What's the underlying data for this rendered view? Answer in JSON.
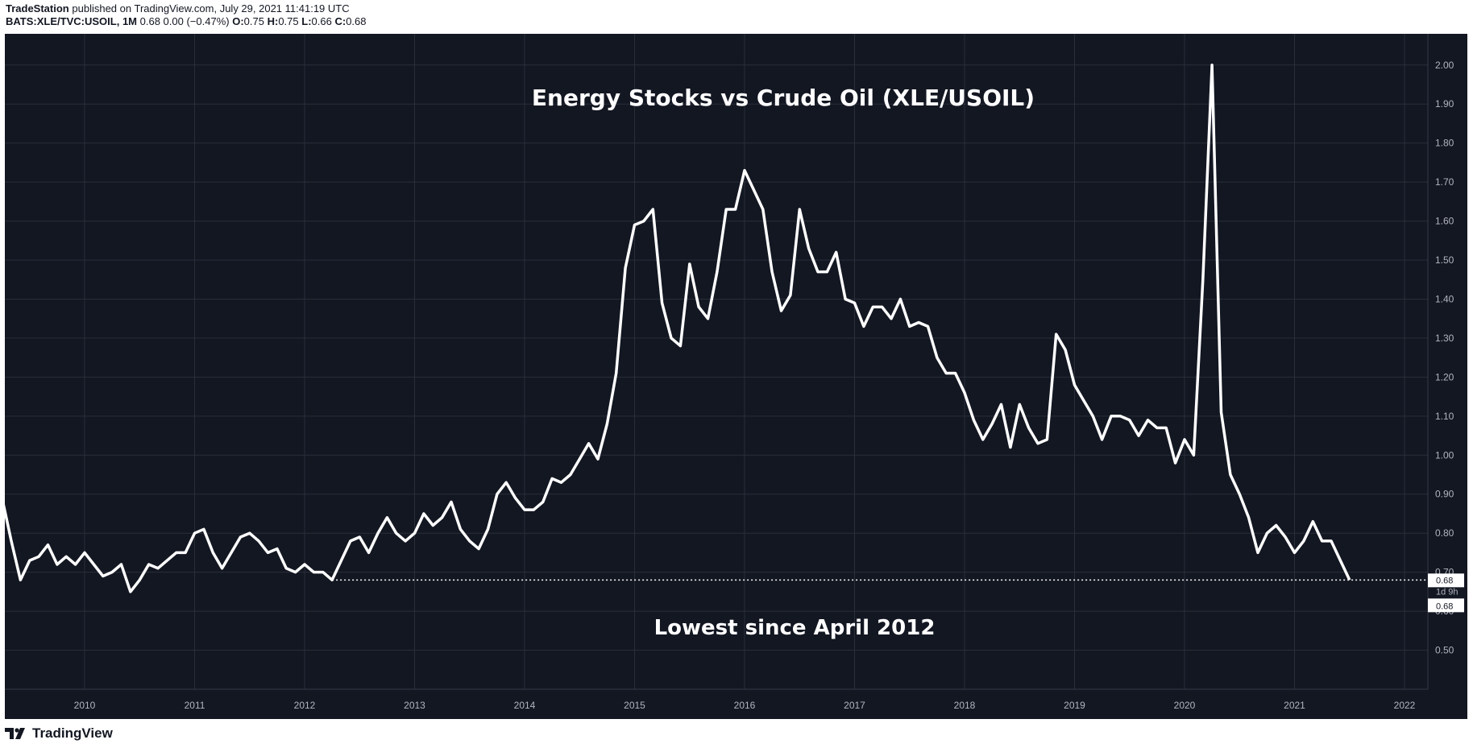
{
  "header": {
    "publisher": "TradeStation",
    "published_text": "published on TradingView.com, July 29, 2021 11:41:19 UTC",
    "symbol": "BATS:XLE/TVC:USOIL",
    "interval": "1M",
    "quote_text": "0.68 0.00 (−0.47%)",
    "open_label": "O:",
    "open": "0.75",
    "high_label": "H:",
    "high": "0.75",
    "low_label": "L:",
    "low": "0.66",
    "close_label": "C:",
    "close": "0.68"
  },
  "footer": {
    "brand": "TradingView"
  },
  "colors": {
    "background": "#131722",
    "line": "#ffffff",
    "grid": "#2a2e39",
    "axis_text": "#b2b5be"
  },
  "chart_data": {
    "type": "line",
    "title": "Energy Stocks vs Crude Oil (XLE/USOIL)",
    "annotation": "Lowest since April 2012",
    "y_ticks": [
      "0.50",
      "0.60",
      "0.70",
      "0.80",
      "0.90",
      "1.00",
      "1.10",
      "1.20",
      "1.30",
      "1.40",
      "1.50",
      "1.60",
      "1.70",
      "1.80",
      "1.90",
      "2.00"
    ],
    "x_ticks": [
      "2010",
      "2011",
      "2012",
      "2013",
      "2014",
      "2015",
      "2016",
      "2017",
      "2018",
      "2019",
      "2020",
      "2021",
      "2022"
    ],
    "price_label": {
      "last": "0.68",
      "countdown": "1d 9h",
      "close": "0.68"
    },
    "ylim": [
      0.4,
      2.08
    ],
    "reference_level": 0.68,
    "reference_start": "2012-04",
    "series": [
      {
        "x": [
          "2009-04",
          "2009-05",
          "2009-06",
          "2009-07",
          "2009-08",
          "2009-09",
          "2009-10",
          "2009-11",
          "2009-12",
          "2010-01",
          "2010-02",
          "2010-03",
          "2010-04",
          "2010-05",
          "2010-06",
          "2010-07",
          "2010-08",
          "2010-09",
          "2010-10",
          "2010-11",
          "2010-12",
          "2011-01",
          "2011-02",
          "2011-03",
          "2011-04",
          "2011-05",
          "2011-06",
          "2011-07",
          "2011-08",
          "2011-09",
          "2011-10",
          "2011-11",
          "2011-12",
          "2012-01",
          "2012-02",
          "2012-03",
          "2012-04",
          "2012-05",
          "2012-06",
          "2012-07",
          "2012-08",
          "2012-09",
          "2012-10",
          "2012-11",
          "2012-12",
          "2013-01",
          "2013-02",
          "2013-03",
          "2013-04",
          "2013-05",
          "2013-06",
          "2013-07",
          "2013-08",
          "2013-09",
          "2013-10",
          "2013-11",
          "2013-12",
          "2014-01",
          "2014-02",
          "2014-03",
          "2014-04",
          "2014-05",
          "2014-06",
          "2014-07",
          "2014-08",
          "2014-09",
          "2014-10",
          "2014-11",
          "2014-12",
          "2015-01",
          "2015-02",
          "2015-03",
          "2015-04",
          "2015-05",
          "2015-06",
          "2015-07",
          "2015-08",
          "2015-09",
          "2015-10",
          "2015-11",
          "2015-12",
          "2016-01",
          "2016-02",
          "2016-03",
          "2016-04",
          "2016-05",
          "2016-06",
          "2016-07",
          "2016-08",
          "2016-09",
          "2016-10",
          "2016-11",
          "2016-12",
          "2017-01",
          "2017-02",
          "2017-03",
          "2017-04",
          "2017-05",
          "2017-06",
          "2017-07",
          "2017-08",
          "2017-09",
          "2017-10",
          "2017-11",
          "2017-12",
          "2018-01",
          "2018-02",
          "2018-03",
          "2018-04",
          "2018-05",
          "2018-06",
          "2018-07",
          "2018-08",
          "2018-09",
          "2018-10",
          "2018-11",
          "2018-12",
          "2019-01",
          "2019-02",
          "2019-03",
          "2019-04",
          "2019-05",
          "2019-06",
          "2019-07",
          "2019-08",
          "2019-09",
          "2019-10",
          "2019-11",
          "2019-12",
          "2020-01",
          "2020-02",
          "2020-03",
          "2020-04",
          "2020-05",
          "2020-06",
          "2020-07",
          "2020-08",
          "2020-09",
          "2020-10",
          "2020-11",
          "2020-12",
          "2021-01",
          "2021-02",
          "2021-03",
          "2021-04",
          "2021-05",
          "2021-06",
          "2021-07"
        ],
        "values": [
          0.89,
          0.78,
          0.68,
          0.73,
          0.74,
          0.77,
          0.72,
          0.74,
          0.72,
          0.75,
          0.72,
          0.69,
          0.7,
          0.72,
          0.65,
          0.68,
          0.72,
          0.71,
          0.73,
          0.75,
          0.75,
          0.8,
          0.81,
          0.75,
          0.71,
          0.75,
          0.79,
          0.8,
          0.78,
          0.75,
          0.76,
          0.71,
          0.7,
          0.72,
          0.7,
          0.7,
          0.68,
          0.73,
          0.78,
          0.79,
          0.75,
          0.8,
          0.84,
          0.8,
          0.78,
          0.8,
          0.85,
          0.82,
          0.84,
          0.88,
          0.81,
          0.78,
          0.76,
          0.81,
          0.9,
          0.93,
          0.89,
          0.86,
          0.86,
          0.88,
          0.94,
          0.93,
          0.95,
          0.99,
          1.03,
          0.99,
          1.08,
          1.21,
          1.48,
          1.59,
          1.6,
          1.63,
          1.39,
          1.3,
          1.28,
          1.49,
          1.38,
          1.35,
          1.47,
          1.63,
          1.63,
          1.73,
          1.68,
          1.63,
          1.47,
          1.37,
          1.41,
          1.63,
          1.53,
          1.47,
          1.47,
          1.52,
          1.4,
          1.39,
          1.33,
          1.38,
          1.38,
          1.35,
          1.4,
          1.33,
          1.34,
          1.33,
          1.25,
          1.21,
          1.21,
          1.16,
          1.09,
          1.04,
          1.08,
          1.13,
          1.02,
          1.13,
          1.07,
          1.03,
          1.04,
          1.31,
          1.27,
          1.18,
          1.14,
          1.1,
          1.04,
          1.1,
          1.1,
          1.09,
          1.05,
          1.09,
          1.07,
          1.07,
          0.98,
          1.04,
          1.0,
          1.45,
          2.0,
          1.11,
          0.95,
          0.9,
          0.84,
          0.75,
          0.8,
          0.82,
          0.79,
          0.75,
          0.78,
          0.83,
          0.78,
          0.78,
          0.73,
          0.68
        ]
      }
    ]
  }
}
